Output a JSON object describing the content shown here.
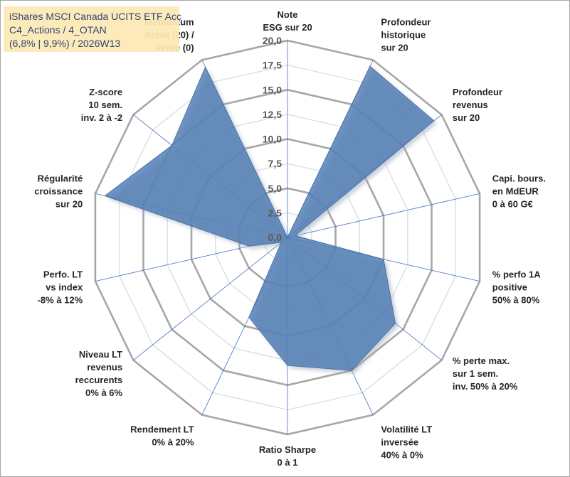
{
  "chart_data": {
    "type": "radar",
    "title_lines": [
      "iShares MSCI Canada UCITS ETF Acc",
      "C4_Actions / 4_OTAN",
      "(6,8% | 9,9%) / 2026W13"
    ],
    "axes": [
      {
        "id": "esg",
        "lines": [
          "Note",
          "ESG sur 20"
        ]
      },
      {
        "id": "profondeur-historique",
        "lines": [
          "Profondeur",
          "historique",
          "sur 20"
        ]
      },
      {
        "id": "profondeur-revenus",
        "lines": [
          "Profondeur",
          "revenus",
          "sur 20"
        ]
      },
      {
        "id": "capi-bours",
        "lines": [
          "Capi. bours.",
          "en MdEUR",
          "0 à 60 G€"
        ]
      },
      {
        "id": "perfo-1a",
        "lines": [
          "% perfo 1A",
          "positive",
          "50% à 80%"
        ]
      },
      {
        "id": "perte-max",
        "lines": [
          "% perte max.",
          "sur 1 sem.",
          "inv. 50% à 20%"
        ]
      },
      {
        "id": "volatilite",
        "lines": [
          "Volatilité LT",
          "inversée",
          "40% à 0%"
        ]
      },
      {
        "id": "ratio-sharpe",
        "lines": [
          "Ratio Sharpe",
          "0 à 1"
        ]
      },
      {
        "id": "rendement",
        "lines": [
          "Rendement LT",
          "0% à 20%"
        ]
      },
      {
        "id": "niveau-lt",
        "lines": [
          "Niveau LT",
          "revenus",
          "reccurents",
          "0% à 6%"
        ]
      },
      {
        "id": "perfo-lt",
        "lines": [
          "Perfo. LT",
          "vs index",
          "-8% à 12%"
        ]
      },
      {
        "id": "regularite",
        "lines": [
          "Régularité",
          "croissance",
          "sur 20"
        ]
      },
      {
        "id": "zscore",
        "lines": [
          "Z-score",
          "10 sem.",
          "inv. 2 à -2"
        ]
      },
      {
        "id": "momentum",
        "lines": [
          "Momentum",
          "Achat (20) /",
          "Vente (0)"
        ]
      }
    ],
    "series": [
      {
        "name": "iShares MSCI Canada UCITS ETF Acc",
        "values": [
          0,
          19.3,
          19.0,
          0.8,
          10.0,
          14.0,
          15.0,
          13.0,
          9.0,
          0.8,
          4.0,
          19.0,
          15.0,
          19.2
        ]
      }
    ],
    "ylim": [
      0,
      20
    ],
    "ticks": [
      "0,0",
      "2,5",
      "5,0",
      "7,5",
      "10,0",
      "12,5",
      "15,0",
      "17,5",
      "20,0"
    ],
    "grid_steps": 8,
    "colors": {
      "fill": "#4f7db5",
      "stroke": "#4a74a8",
      "grid": "#bfbfbf",
      "spoke": "#4472c4",
      "shadow": "#9aa7b8"
    }
  }
}
